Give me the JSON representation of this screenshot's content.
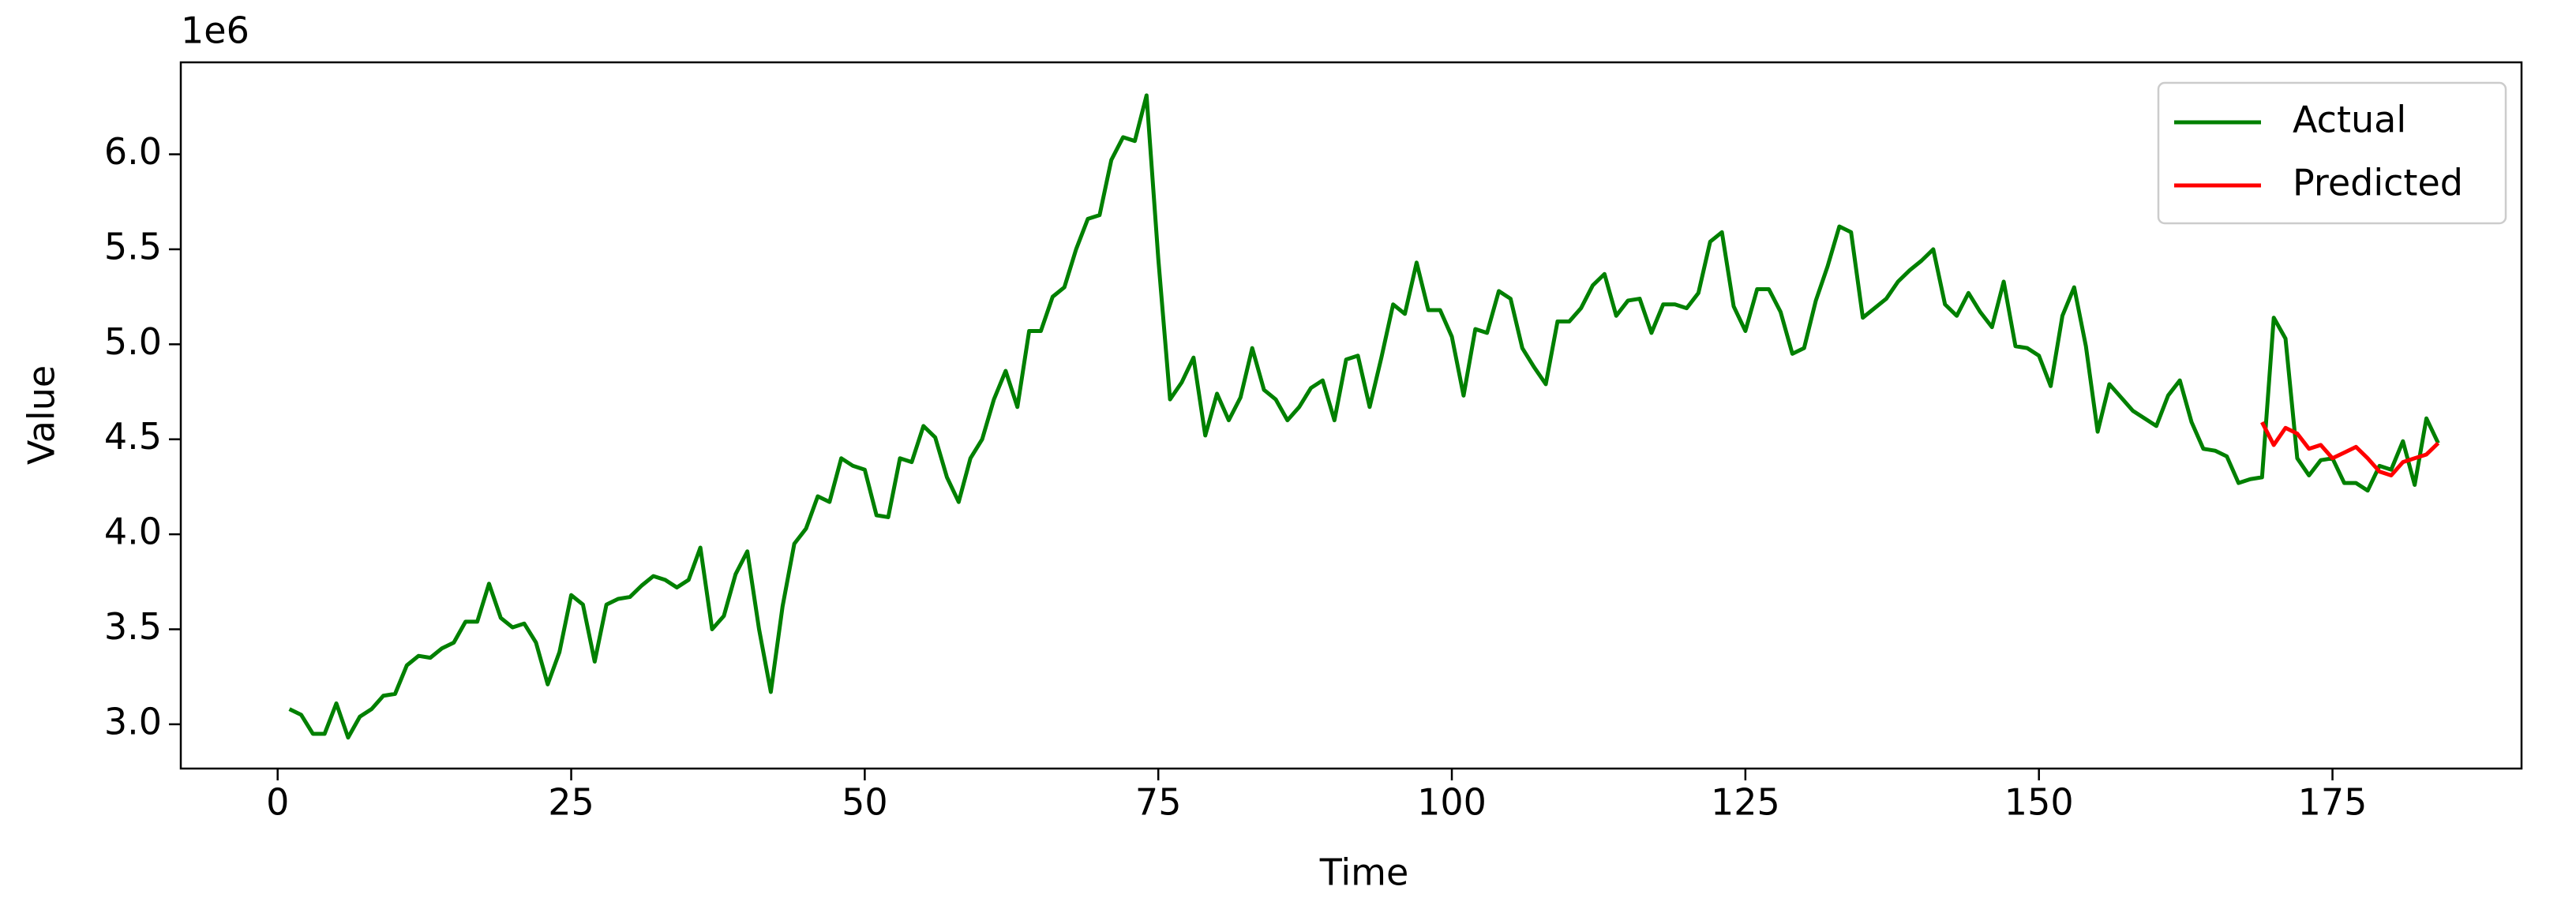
{
  "chart_data": {
    "type": "line",
    "offset_text": "1e6",
    "xlabel": "Time",
    "ylabel": "Value",
    "xlim": [
      -8.25,
      191.1
    ],
    "ylim": [
      2.767,
      6.484
    ],
    "xticks": [
      0,
      25,
      50,
      75,
      100,
      125,
      150,
      175
    ],
    "yticks": [
      {
        "value": 3,
        "label": "3.0"
      },
      {
        "value": 3.5,
        "label": "3.5"
      },
      {
        "value": 4,
        "label": "4.0"
      },
      {
        "value": 4.5,
        "label": "4.5"
      },
      {
        "value": 5,
        "label": "5.0"
      },
      {
        "value": 5.5,
        "label": "5.5"
      },
      {
        "value": 6,
        "label": "6.0"
      }
    ],
    "grid": false,
    "legend": "upper right",
    "series": [
      {
        "name": "Actual",
        "color": "#008000",
        "x": [
          1,
          2,
          3,
          4,
          5,
          6,
          7,
          8,
          9,
          10,
          11,
          12,
          13,
          14,
          15,
          16,
          17,
          18,
          19,
          20,
          21,
          22,
          23,
          24,
          25,
          26,
          27,
          28,
          29,
          30,
          31,
          32,
          33,
          34,
          35,
          36,
          37,
          38,
          39,
          40,
          41,
          42,
          43,
          44,
          45,
          46,
          47,
          48,
          49,
          50,
          51,
          52,
          53,
          54,
          55,
          56,
          57,
          58,
          59,
          60,
          61,
          62,
          63,
          64,
          65,
          66,
          67,
          68,
          69,
          70,
          71,
          72,
          73,
          74,
          75,
          76,
          77,
          78,
          79,
          80,
          81,
          82,
          83,
          84,
          85,
          86,
          87,
          88,
          89,
          90,
          91,
          92,
          93,
          94,
          95,
          96,
          97,
          98,
          99,
          100,
          101,
          102,
          103,
          104,
          105,
          106,
          107,
          108,
          109,
          110,
          111,
          112,
          113,
          114,
          115,
          116,
          117,
          118,
          119,
          120,
          121,
          122,
          123,
          124,
          125,
          126,
          127,
          128,
          129,
          130,
          131,
          132,
          133,
          134,
          135,
          136,
          137,
          138,
          139,
          140,
          141,
          142,
          143,
          144,
          145,
          146,
          147,
          148,
          149,
          150,
          151,
          152,
          153,
          154,
          155,
          156,
          157,
          158,
          159,
          160,
          161,
          162,
          163,
          164,
          165,
          166,
          167,
          168,
          169,
          170,
          171,
          172,
          173,
          174,
          175,
          176,
          177,
          178,
          179,
          180,
          181,
          182,
          183,
          184
        ],
        "values": [
          3.08,
          3.05,
          2.95,
          2.95,
          3.11,
          2.93,
          3.04,
          3.08,
          3.15,
          3.16,
          3.31,
          3.36,
          3.35,
          3.4,
          3.43,
          3.54,
          3.54,
          3.74,
          3.56,
          3.51,
          3.53,
          3.43,
          3.21,
          3.38,
          3.68,
          3.63,
          3.33,
          3.63,
          3.66,
          3.67,
          3.73,
          3.78,
          3.76,
          3.72,
          3.76,
          3.93,
          3.5,
          3.57,
          3.79,
          3.91,
          3.5,
          3.17,
          3.62,
          3.95,
          4.03,
          4.2,
          4.17,
          4.4,
          4.36,
          4.34,
          4.1,
          4.09,
          4.4,
          4.38,
          4.57,
          4.51,
          4.3,
          4.17,
          4.4,
          4.5,
          4.71,
          4.86,
          4.67,
          5.07,
          5.07,
          5.25,
          5.3,
          5.5,
          5.66,
          5.68,
          5.97,
          6.09,
          6.07,
          6.31,
          5.45,
          4.71,
          4.8,
          4.93,
          4.52,
          4.74,
          4.6,
          4.72,
          4.98,
          4.76,
          4.71,
          4.6,
          4.67,
          4.77,
          4.81,
          4.6,
          4.92,
          4.94,
          4.67,
          4.93,
          5.21,
          5.16,
          5.43,
          5.18,
          5.18,
          5.04,
          4.73,
          5.08,
          5.06,
          5.28,
          5.24,
          4.98,
          4.88,
          4.79,
          5.12,
          5.12,
          5.19,
          5.31,
          5.37,
          5.15,
          5.23,
          5.24,
          5.06,
          5.21,
          5.21,
          5.19,
          5.27,
          5.54,
          5.59,
          5.2,
          5.07,
          5.29,
          5.29,
          5.17,
          4.95,
          4.98,
          5.23,
          5.41,
          5.62,
          5.59,
          5.14,
          5.19,
          5.24,
          5.33,
          5.39,
          5.44,
          5.5,
          5.21,
          5.15,
          5.27,
          5.17,
          5.09,
          5.33,
          4.99,
          4.98,
          4.94,
          4.78,
          5.15,
          5.3,
          4.99,
          4.54,
          4.79,
          4.72,
          4.65,
          4.61,
          4.57,
          4.73,
          4.81,
          4.59,
          4.45,
          4.44,
          4.41,
          4.27,
          4.29,
          4.3,
          5.14,
          5.03,
          4.4,
          4.31,
          4.39,
          4.4,
          4.27,
          4.27,
          4.23,
          4.36,
          4.34,
          4.49,
          4.26,
          4.61,
          4.48
        ]
      },
      {
        "name": "Predicted",
        "color": "#ff0000",
        "x": [
          169,
          170,
          171,
          172,
          173,
          174,
          175,
          176,
          177,
          178,
          179,
          180,
          181,
          182,
          183,
          184
        ],
        "values": [
          4.59,
          4.47,
          4.56,
          4.53,
          4.45,
          4.47,
          4.4,
          4.43,
          4.46,
          4.4,
          4.33,
          4.31,
          4.38,
          4.4,
          4.42,
          4.48
        ]
      }
    ]
  }
}
